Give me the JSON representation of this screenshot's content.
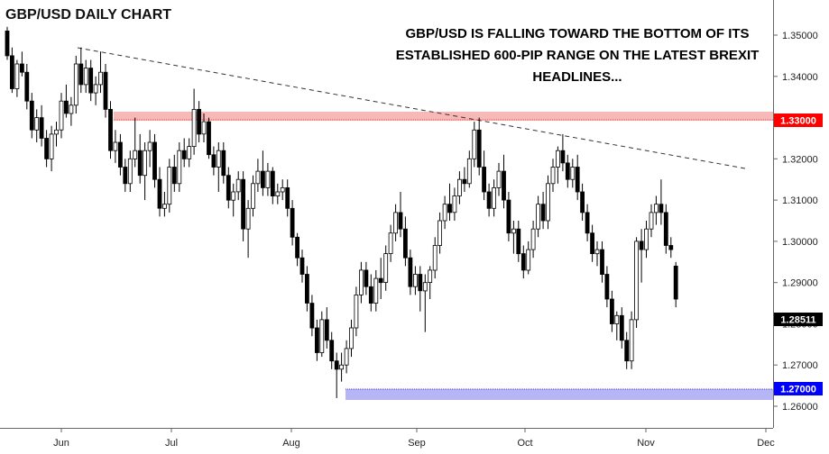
{
  "chart_data": {
    "type": "candlestick",
    "title": "GBP/USD DAILY CHART",
    "annotation": "GBP/USD IS FALLING TOWARD THE BOTTOM OF ITS ESTABLISHED 600-PIP RANGE ON THE LATEST BREXIT HEADLINES...",
    "xlabel": "",
    "ylabel": "",
    "ylim": [
      1.261,
      1.3525
    ],
    "y_ticks": [
      "1.35000",
      "1.34000",
      "1.33000",
      "1.32000",
      "1.31000",
      "1.30000",
      "1.29000",
      "1.28000",
      "1.27000",
      "1.26000"
    ],
    "x_ticks": [
      "Jun",
      "Jul",
      "Aug",
      "Sep",
      "Oct",
      "Nov",
      "Dec"
    ],
    "resistance": {
      "value": 1.33,
      "label": "1.33000",
      "color": "#ff0000",
      "zone_color": "#f7b8b8"
    },
    "support": {
      "value": 1.27,
      "label": "1.27000",
      "color": "#0000ff",
      "zone_color": "#b6b6f6"
    },
    "last_price": {
      "value": 1.28511,
      "label": "1.28511",
      "color": "#000000"
    },
    "trendline": {
      "start": [
        12,
        1.347
      ],
      "end": [
        167,
        1.319
      ]
    },
    "grid": false,
    "colors": {
      "up": "#ffffff",
      "down": "#000000",
      "outline": "#000000"
    },
    "candles": [
      [
        1.351,
        1.352,
        1.344,
        1.345
      ],
      [
        1.345,
        1.347,
        1.336,
        1.337
      ],
      [
        1.337,
        1.344,
        1.335,
        1.343
      ],
      [
        1.343,
        1.346,
        1.34,
        1.341
      ],
      [
        1.341,
        1.343,
        1.332,
        1.334
      ],
      [
        1.334,
        1.336,
        1.325,
        1.327
      ],
      [
        1.327,
        1.332,
        1.324,
        1.33
      ],
      [
        1.33,
        1.333,
        1.323,
        1.325
      ],
      [
        1.325,
        1.327,
        1.318,
        1.32
      ],
      [
        1.32,
        1.328,
        1.317,
        1.326
      ],
      [
        1.326,
        1.329,
        1.323,
        1.327
      ],
      [
        1.327,
        1.336,
        1.325,
        1.334
      ],
      [
        1.334,
        1.338,
        1.33,
        1.331
      ],
      [
        1.331,
        1.335,
        1.328,
        1.333
      ],
      [
        1.333,
        1.345,
        1.331,
        1.343
      ],
      [
        1.343,
        1.347,
        1.336,
        1.338
      ],
      [
        1.338,
        1.344,
        1.336,
        1.342
      ],
      [
        1.342,
        1.344,
        1.334,
        1.336
      ],
      [
        1.336,
        1.34,
        1.333,
        1.338
      ],
      [
        1.338,
        1.346,
        1.336,
        1.341
      ],
      [
        1.341,
        1.343,
        1.33,
        1.332
      ],
      [
        1.332,
        1.334,
        1.32,
        1.322
      ],
      [
        1.322,
        1.327,
        1.319,
        1.324
      ],
      [
        1.324,
        1.326,
        1.316,
        1.318
      ],
      [
        1.318,
        1.32,
        1.312,
        1.314
      ],
      [
        1.314,
        1.322,
        1.312,
        1.32
      ],
      [
        1.32,
        1.33,
        1.318,
        1.322
      ],
      [
        1.322,
        1.326,
        1.314,
        1.316
      ],
      [
        1.316,
        1.324,
        1.31,
        1.322
      ],
      [
        1.322,
        1.327,
        1.318,
        1.324
      ],
      [
        1.324,
        1.326,
        1.313,
        1.315
      ],
      [
        1.315,
        1.318,
        1.306,
        1.308
      ],
      [
        1.308,
        1.312,
        1.306,
        1.309
      ],
      [
        1.309,
        1.32,
        1.307,
        1.318
      ],
      [
        1.318,
        1.321,
        1.312,
        1.314
      ],
      [
        1.314,
        1.324,
        1.312,
        1.322
      ],
      [
        1.322,
        1.325,
        1.318,
        1.32
      ],
      [
        1.32,
        1.325,
        1.318,
        1.323
      ],
      [
        1.323,
        1.337,
        1.321,
        1.332
      ],
      [
        1.332,
        1.334,
        1.324,
        1.326
      ],
      [
        1.326,
        1.331,
        1.324,
        1.329
      ],
      [
        1.329,
        1.33,
        1.32,
        1.321
      ],
      [
        1.321,
        1.323,
        1.316,
        1.318
      ],
      [
        1.318,
        1.324,
        1.312,
        1.322
      ],
      [
        1.322,
        1.324,
        1.314,
        1.316
      ],
      [
        1.316,
        1.318,
        1.308,
        1.31
      ],
      [
        1.31,
        1.314,
        1.306,
        1.312
      ],
      [
        1.312,
        1.317,
        1.31,
        1.315
      ],
      [
        1.315,
        1.317,
        1.3,
        1.303
      ],
      [
        1.303,
        1.31,
        1.296,
        1.308
      ],
      [
        1.308,
        1.316,
        1.306,
        1.314
      ],
      [
        1.314,
        1.32,
        1.312,
        1.317
      ],
      [
        1.317,
        1.322,
        1.311,
        1.313
      ],
      [
        1.313,
        1.319,
        1.311,
        1.317
      ],
      [
        1.317,
        1.318,
        1.309,
        1.311
      ],
      [
        1.311,
        1.314,
        1.309,
        1.312
      ],
      [
        1.312,
        1.315,
        1.31,
        1.313
      ],
      [
        1.313,
        1.315,
        1.306,
        1.308
      ],
      [
        1.308,
        1.31,
        1.299,
        1.301
      ],
      [
        1.301,
        1.302,
        1.294,
        1.296
      ],
      [
        1.296,
        1.298,
        1.29,
        1.292
      ],
      [
        1.292,
        1.294,
        1.283,
        1.285
      ],
      [
        1.285,
        1.287,
        1.277,
        1.279
      ],
      [
        1.279,
        1.281,
        1.271,
        1.273
      ],
      [
        1.273,
        1.283,
        1.272,
        1.281
      ],
      [
        1.281,
        1.284,
        1.274,
        1.276
      ],
      [
        1.276,
        1.278,
        1.269,
        1.271
      ],
      [
        1.271,
        1.273,
        1.262,
        1.269
      ],
      [
        1.269,
        1.273,
        1.266,
        1.27
      ],
      [
        1.27,
        1.276,
        1.268,
        1.274
      ],
      [
        1.274,
        1.281,
        1.272,
        1.279
      ],
      [
        1.279,
        1.289,
        1.277,
        1.287
      ],
      [
        1.287,
        1.295,
        1.285,
        1.293
      ],
      [
        1.293,
        1.295,
        1.287,
        1.289
      ],
      [
        1.289,
        1.292,
        1.283,
        1.285
      ],
      [
        1.285,
        1.293,
        1.283,
        1.291
      ],
      [
        1.291,
        1.296,
        1.286,
        1.29
      ],
      [
        1.29,
        1.299,
        1.288,
        1.297
      ],
      [
        1.297,
        1.304,
        1.295,
        1.302
      ],
      [
        1.302,
        1.309,
        1.3,
        1.307
      ],
      [
        1.307,
        1.312,
        1.301,
        1.303
      ],
      [
        1.303,
        1.306,
        1.294,
        1.296
      ],
      [
        1.296,
        1.298,
        1.287,
        1.289
      ],
      [
        1.289,
        1.294,
        1.287,
        1.292
      ],
      [
        1.292,
        1.294,
        1.283,
        1.288
      ],
      [
        1.288,
        1.292,
        1.278,
        1.29
      ],
      [
        1.29,
        1.294,
        1.286,
        1.293
      ],
      [
        1.293,
        1.301,
        1.291,
        1.299
      ],
      [
        1.299,
        1.307,
        1.297,
        1.305
      ],
      [
        1.305,
        1.311,
        1.303,
        1.309
      ],
      [
        1.309,
        1.314,
        1.305,
        1.307
      ],
      [
        1.307,
        1.313,
        1.305,
        1.311
      ],
      [
        1.311,
        1.317,
        1.309,
        1.315
      ],
      [
        1.315,
        1.318,
        1.312,
        1.314
      ],
      [
        1.314,
        1.322,
        1.313,
        1.32
      ],
      [
        1.32,
        1.329,
        1.318,
        1.327
      ],
      [
        1.327,
        1.33,
        1.316,
        1.318
      ],
      [
        1.318,
        1.322,
        1.31,
        1.312
      ],
      [
        1.312,
        1.314,
        1.306,
        1.308
      ],
      [
        1.308,
        1.315,
        1.306,
        1.313
      ],
      [
        1.313,
        1.319,
        1.311,
        1.317
      ],
      [
        1.317,
        1.321,
        1.308,
        1.31
      ],
      [
        1.31,
        1.312,
        1.3,
        1.302
      ],
      [
        1.302,
        1.305,
        1.297,
        1.303
      ],
      [
        1.303,
        1.305,
        1.295,
        1.297
      ],
      [
        1.297,
        1.299,
        1.291,
        1.293
      ],
      [
        1.293,
        1.3,
        1.292,
        1.298
      ],
      [
        1.298,
        1.305,
        1.296,
        1.303
      ],
      [
        1.303,
        1.311,
        1.301,
        1.309
      ],
      [
        1.309,
        1.312,
        1.303,
        1.305
      ],
      [
        1.305,
        1.316,
        1.303,
        1.314
      ],
      [
        1.314,
        1.32,
        1.312,
        1.318
      ],
      [
        1.318,
        1.323,
        1.314,
        1.322
      ],
      [
        1.322,
        1.326,
        1.317,
        1.319
      ],
      [
        1.319,
        1.321,
        1.313,
        1.315
      ],
      [
        1.315,
        1.32,
        1.313,
        1.318
      ],
      [
        1.318,
        1.321,
        1.31,
        1.312
      ],
      [
        1.312,
        1.314,
        1.305,
        1.307
      ],
      [
        1.307,
        1.309,
        1.3,
        1.302
      ],
      [
        1.302,
        1.304,
        1.295,
        1.297
      ],
      [
        1.297,
        1.3,
        1.294,
        1.298
      ],
      [
        1.298,
        1.3,
        1.29,
        1.292
      ],
      [
        1.292,
        1.294,
        1.284,
        1.286
      ],
      [
        1.286,
        1.288,
        1.278,
        1.28
      ],
      [
        1.28,
        1.283,
        1.276,
        1.282
      ],
      [
        1.282,
        1.284,
        1.274,
        1.276
      ],
      [
        1.276,
        1.278,
        1.269,
        1.271
      ],
      [
        1.271,
        1.283,
        1.269,
        1.281
      ],
      [
        1.281,
        1.301,
        1.279,
        1.3
      ],
      [
        1.3,
        1.303,
        1.29,
        1.298
      ],
      [
        1.298,
        1.305,
        1.296,
        1.303
      ],
      [
        1.303,
        1.309,
        1.301,
        1.307
      ],
      [
        1.307,
        1.311,
        1.304,
        1.309
      ],
      [
        1.309,
        1.315,
        1.304,
        1.307
      ],
      [
        1.307,
        1.309,
        1.297,
        1.299
      ],
      [
        1.299,
        1.301,
        1.296,
        1.298
      ],
      [
        1.294,
        1.295,
        1.284,
        1.286
      ]
    ]
  }
}
